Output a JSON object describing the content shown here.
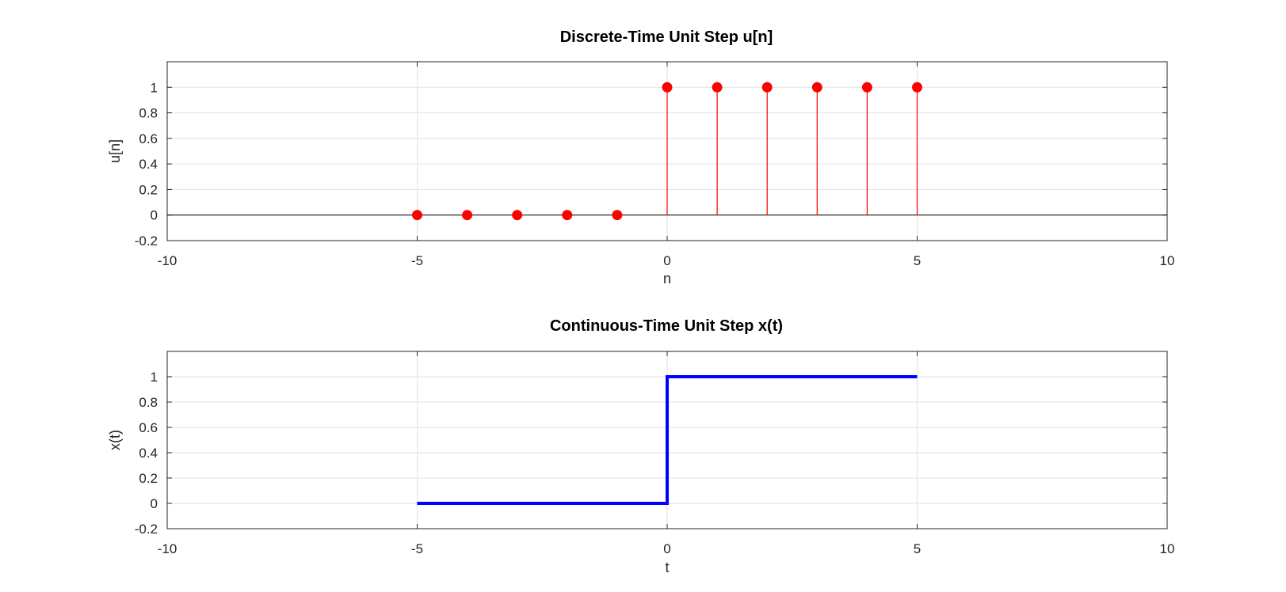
{
  "chart_data": [
    {
      "type": "stem",
      "title": "Discrete-Time Unit Step u[n]",
      "xlabel": "n",
      "ylabel": "u[n]",
      "xlim": [
        -10,
        10
      ],
      "ylim": [
        -0.2,
        1.2
      ],
      "xticks": [
        -10,
        -5,
        0,
        5,
        10
      ],
      "xtick_labels": [
        "-10",
        "-5",
        "0",
        "5",
        "10"
      ],
      "yticks": [
        -0.2,
        0,
        0.2,
        0.4,
        0.6,
        0.8,
        1
      ],
      "ytick_labels": [
        "-0.2",
        "0",
        "0.2",
        "0.4",
        "0.6",
        "0.8",
        "1"
      ],
      "grid": true,
      "baseline": 0,
      "color": "#ff0000",
      "series": [
        {
          "x": [
            -5,
            -4,
            -3,
            -2,
            -1,
            0,
            1,
            2,
            3,
            4,
            5
          ],
          "y": [
            0,
            0,
            0,
            0,
            0,
            1,
            1,
            1,
            1,
            1,
            1
          ]
        }
      ]
    },
    {
      "type": "line",
      "title": "Continuous-Time Unit Step x(t)",
      "xlabel": "t",
      "ylabel": "x(t)",
      "xlim": [
        -10,
        10
      ],
      "ylim": [
        -0.2,
        1.2
      ],
      "xticks": [
        -10,
        -5,
        0,
        5,
        10
      ],
      "xtick_labels": [
        "-10",
        "-5",
        "0",
        "5",
        "10"
      ],
      "yticks": [
        -0.2,
        0,
        0.2,
        0.4,
        0.6,
        0.8,
        1
      ],
      "ytick_labels": [
        "-0.2",
        "0",
        "0.2",
        "0.4",
        "0.6",
        "0.8",
        "1"
      ],
      "grid": true,
      "color": "#0000ff",
      "series": [
        {
          "x": [
            -5,
            0,
            0,
            5
          ],
          "y": [
            0,
            0,
            1,
            1
          ]
        }
      ]
    }
  ]
}
